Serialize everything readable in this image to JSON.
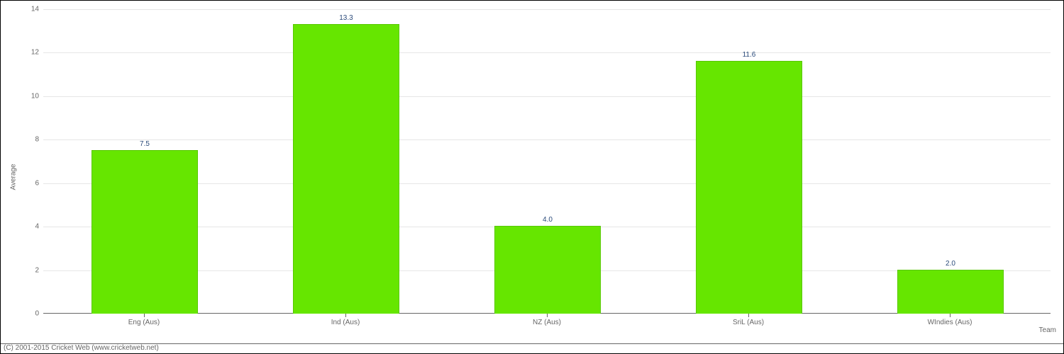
{
  "chart": {
    "type": "bar",
    "y_axis_label": "Average",
    "x_axis_label": "Team",
    "categories": [
      "Eng (Aus)",
      "Ind (Aus)",
      "NZ (Aus)",
      "SriL (Aus)",
      "WIndies (Aus)"
    ],
    "values": [
      7.5,
      13.3,
      4.0,
      11.6,
      2.0
    ],
    "value_labels": [
      "7.5",
      "13.3",
      "4.0",
      "11.6",
      "2.0"
    ],
    "bar_color": "#66e600",
    "bar_border_color": "#58c800",
    "y_ticks": [
      0,
      2,
      4,
      6,
      8,
      10,
      12,
      14
    ],
    "y_max": 14,
    "value_label_color": "#2a4a7a",
    "axis_text_color": "#666666",
    "grid_color": "#e6e6e6",
    "axis_line_color": "#666666",
    "background_color": "#ffffff",
    "bar_rel_width": 0.52,
    "label_fontsize": 10,
    "tick_fontsize": 10,
    "value_fontsize": 10
  },
  "copyright": "(C) 2001-2015 Cricket Web (www.cricketweb.net)"
}
